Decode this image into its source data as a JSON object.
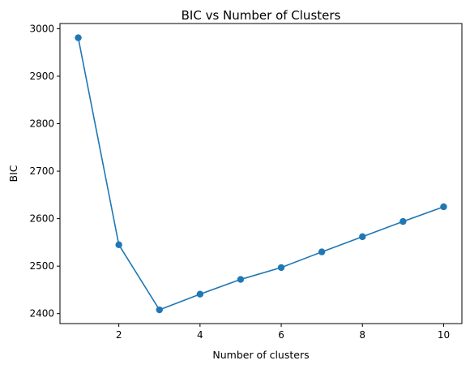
{
  "chart_data": {
    "type": "line",
    "title": "BIC vs Number of Clusters",
    "xlabel": "Number of clusters",
    "ylabel": "BIC",
    "xlim": [
      0.55,
      10.45
    ],
    "ylim": [
      2379,
      3011
    ],
    "x_ticks": [
      2,
      4,
      6,
      8,
      10
    ],
    "y_ticks": [
      2400,
      2500,
      2600,
      2700,
      2800,
      2900,
      3000
    ],
    "grid": false,
    "marker": "circle",
    "series": [
      {
        "color": "#1f77b4",
        "x": [
          1,
          2,
          3,
          4,
          5,
          6,
          7,
          8,
          9,
          10
        ],
        "y": [
          2981,
          2545,
          2408,
          2441,
          2472,
          2497,
          2530,
          2562,
          2594,
          2625
        ]
      }
    ]
  }
}
